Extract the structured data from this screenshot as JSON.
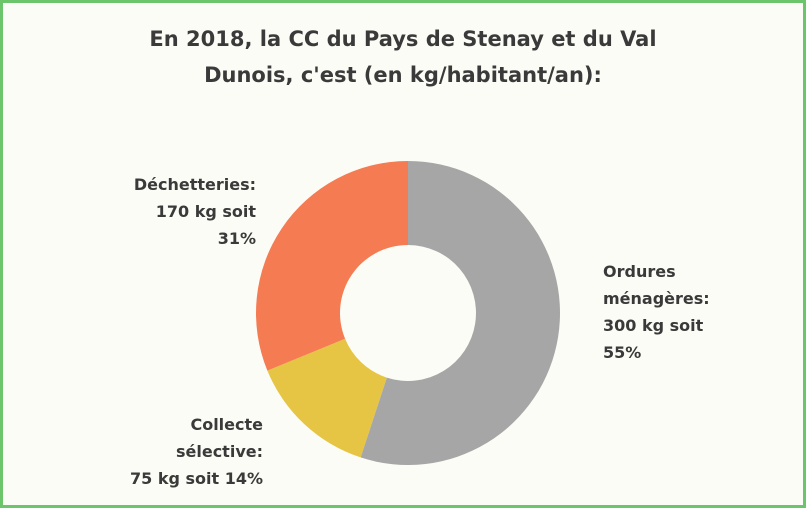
{
  "chart_data": {
    "type": "pie",
    "title": "En 2018, la CC du Pays de Stenay et du Val Dunois, c'est (en kg/habitant/an):",
    "categories": [
      "Ordures ménagères:",
      "Collecte sélective:",
      "Déchetteries:"
    ],
    "values": [
      300,
      75,
      170
    ],
    "value_labels": [
      "300 kg soit 55%",
      "75 kg soit 14%",
      "170 kg soit 31%"
    ],
    "colors": [
      "#a6a6a6",
      "#e6c444",
      "#f47b52"
    ],
    "donut": true
  }
}
